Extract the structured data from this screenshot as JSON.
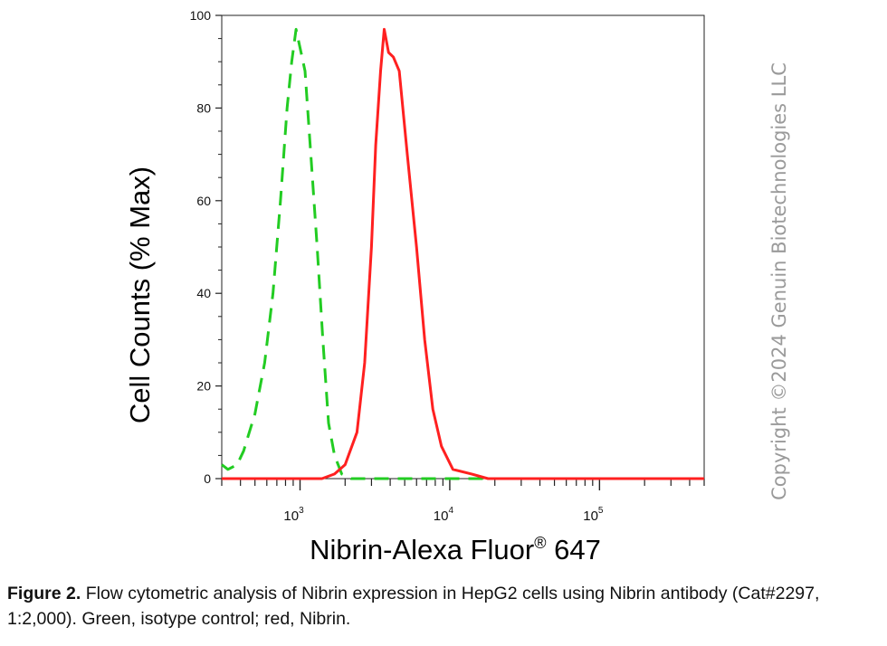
{
  "chart_data": {
    "type": "line",
    "xlabel": "Nibrin-Alexa Fluor",
    "xlabel_superscript": "®",
    "xlabel_suffix": " 647",
    "ylabel": "Cell Counts (% Max)",
    "x_scale": "log",
    "xlim": [
      300,
      500000
    ],
    "ylim": [
      0,
      100
    ],
    "y_ticks": [
      "0",
      "20",
      "40",
      "60",
      "80",
      "100"
    ],
    "x_ticks": [
      {
        "base": "10",
        "exp": "3",
        "value": 1000
      },
      {
        "base": "10",
        "exp": "4",
        "value": 10000
      },
      {
        "base": "10",
        "exp": "5",
        "value": 100000
      }
    ],
    "grid": false,
    "series": [
      {
        "color": "#22cc22",
        "style": "dashed",
        "points": [
          [
            300,
            3
          ],
          [
            330,
            2
          ],
          [
            380,
            3
          ],
          [
            420,
            6
          ],
          [
            500,
            14
          ],
          [
            580,
            25
          ],
          [
            660,
            40
          ],
          [
            740,
            60
          ],
          [
            820,
            80
          ],
          [
            880,
            90
          ],
          [
            940,
            97
          ],
          [
            1000,
            93
          ],
          [
            1080,
            88
          ],
          [
            1180,
            70
          ],
          [
            1300,
            50
          ],
          [
            1420,
            30
          ],
          [
            1550,
            12
          ],
          [
            1700,
            5
          ],
          [
            1900,
            1
          ],
          [
            2200,
            0
          ],
          [
            3000,
            0
          ],
          [
            10000,
            0
          ],
          [
            500000,
            0
          ]
        ]
      },
      {
        "color": "#ff2020",
        "style": "solid",
        "points": [
          [
            300,
            0
          ],
          [
            1400,
            0
          ],
          [
            1700,
            1
          ],
          [
            2000,
            3
          ],
          [
            2400,
            10
          ],
          [
            2700,
            25
          ],
          [
            3000,
            50
          ],
          [
            3200,
            72
          ],
          [
            3450,
            88
          ],
          [
            3650,
            97
          ],
          [
            3900,
            92
          ],
          [
            4200,
            91
          ],
          [
            4600,
            88
          ],
          [
            5200,
            70
          ],
          [
            6000,
            50
          ],
          [
            6800,
            30
          ],
          [
            7700,
            15
          ],
          [
            8800,
            7
          ],
          [
            10500,
            2
          ],
          [
            14000,
            1
          ],
          [
            18000,
            0
          ],
          [
            500000,
            0
          ]
        ]
      }
    ]
  },
  "watermark": "Copyright ©2024 Genuin Biotechnologies LLC",
  "caption": {
    "label": "Figure 2.",
    "text": " Flow cytometric analysis of Nibrin expression in HepG2 cells using Nibrin antibody (Cat#2297, 1:2,000). Green, isotype control; red, Nibrin."
  }
}
